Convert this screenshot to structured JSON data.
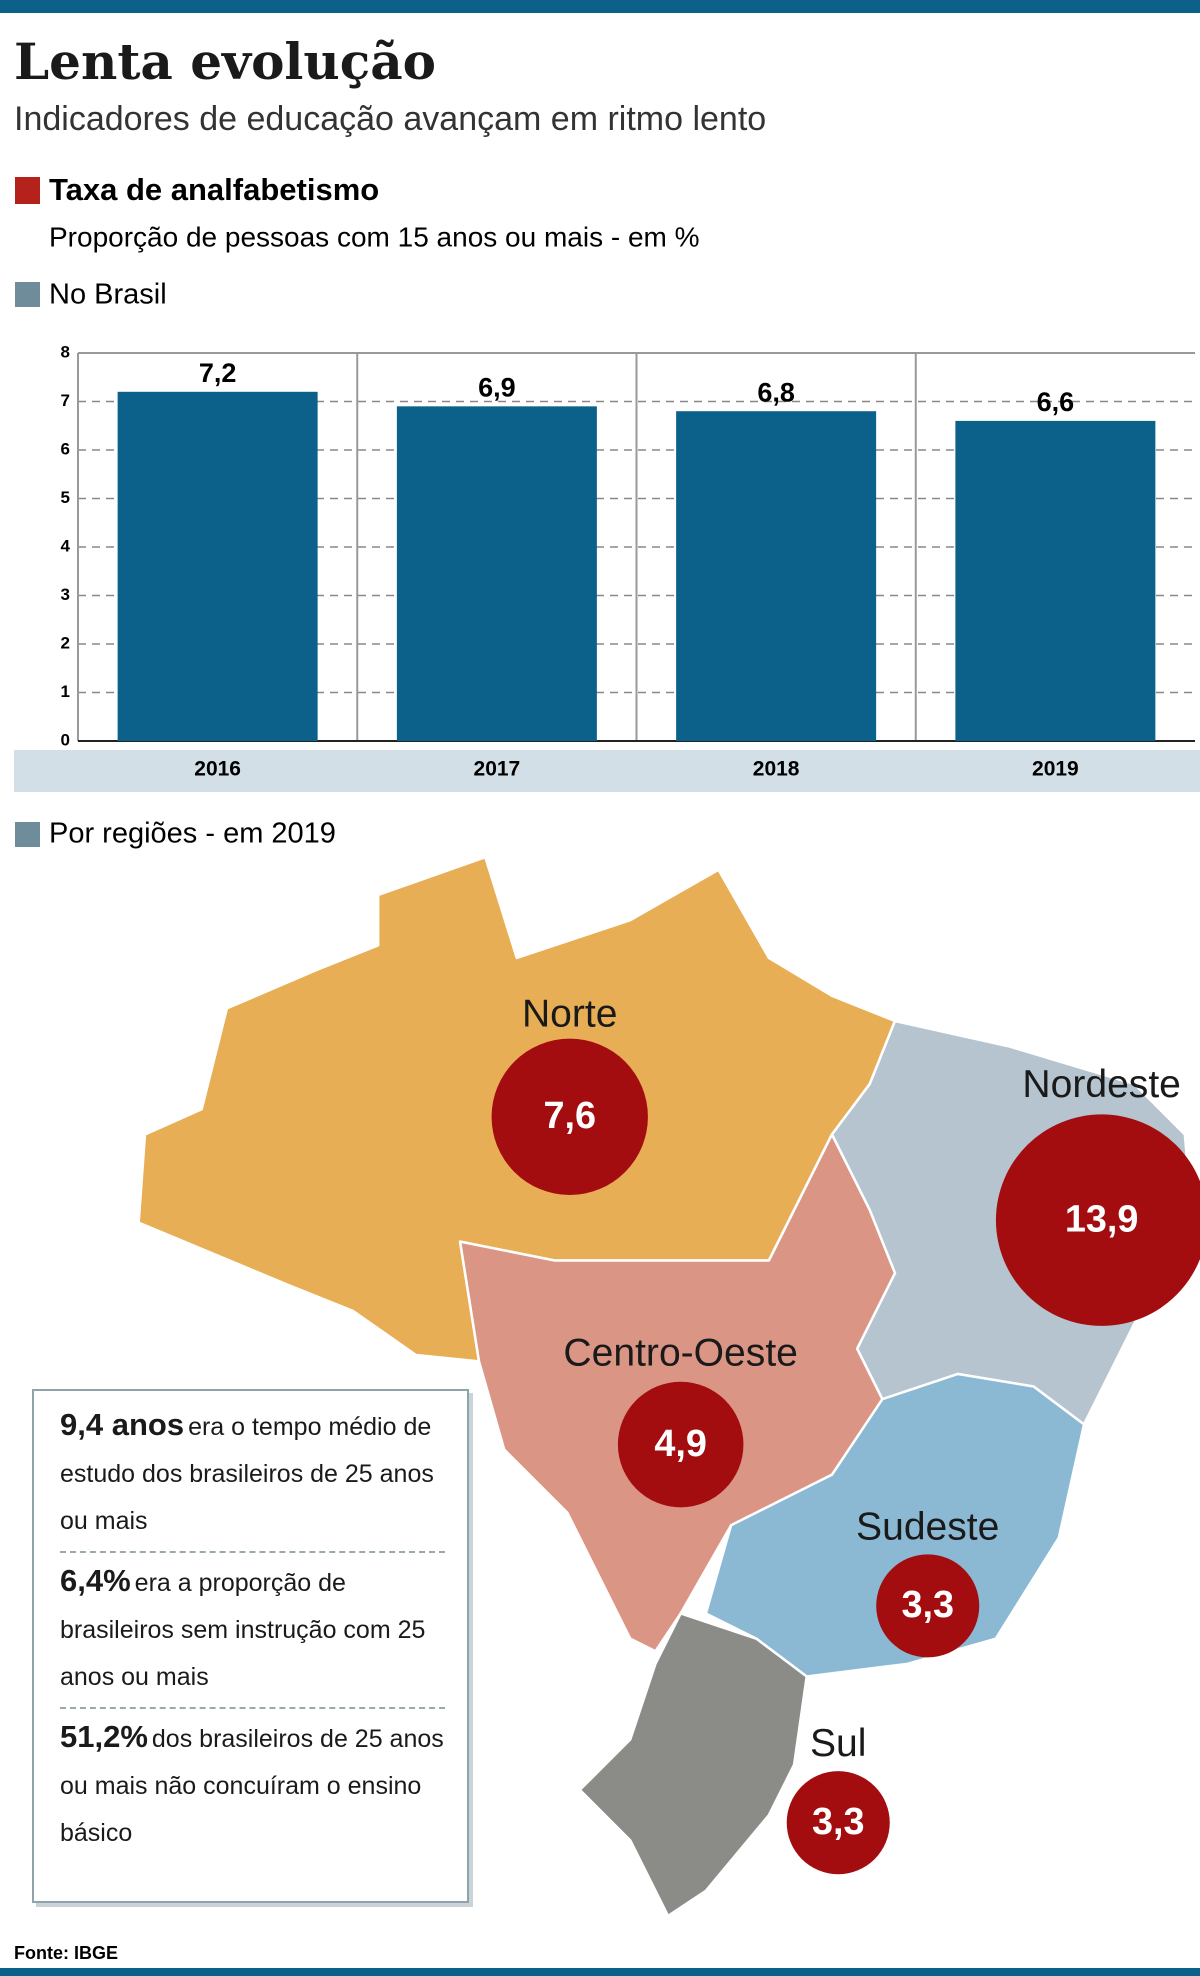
{
  "header": {
    "title": "Lenta evolução",
    "subtitle": "Indicadores de educação avançam em ritmo lento"
  },
  "section": {
    "title": "Taxa de analfabetismo",
    "subtitle": "Proporção de pessoas com 15 anos ou mais - em %"
  },
  "chart_data": [
    {
      "type": "bar",
      "title": "No Brasil",
      "categories": [
        "2016",
        "2017",
        "2018",
        "2019"
      ],
      "values": [
        7.2,
        6.9,
        6.8,
        6.6
      ],
      "value_labels": [
        "7,2",
        "6,9",
        "6,8",
        "6,6"
      ],
      "color": "#0b6189",
      "ylim": [
        0,
        8
      ],
      "yticks": [
        0,
        1,
        2,
        3,
        4,
        5,
        6,
        7,
        8
      ],
      "grid": true
    },
    {
      "type": "bubble-map",
      "title": "Por regiões - em 2019",
      "categories": [
        "Norte",
        "Nordeste",
        "Centro-Oeste",
        "Sudeste",
        "Sul"
      ],
      "values": [
        7.6,
        13.9,
        4.9,
        3.3,
        3.3
      ],
      "value_labels": [
        "7,6",
        "13,9",
        "4,9",
        "3,3",
        "3,3"
      ],
      "color": "#a30d10",
      "region_colors": [
        "#e8ae55",
        "#b5c4ce",
        "#da9584",
        "#8bb9d3",
        "#8b8c87"
      ]
    }
  ],
  "notes": [
    {
      "highlight": "9,4 anos",
      "text": "era o tempo médio de estudo dos brasileiros de 25 anos ou mais"
    },
    {
      "highlight": "6,4%",
      "text": "era a proporção de brasileiros sem instrução com 25 anos ou mais"
    },
    {
      "highlight": "51,2%",
      "text": "dos brasileiros de 25 anos ou mais não concuíram o ensino básico"
    }
  ],
  "source": "Fonte: IBGE"
}
